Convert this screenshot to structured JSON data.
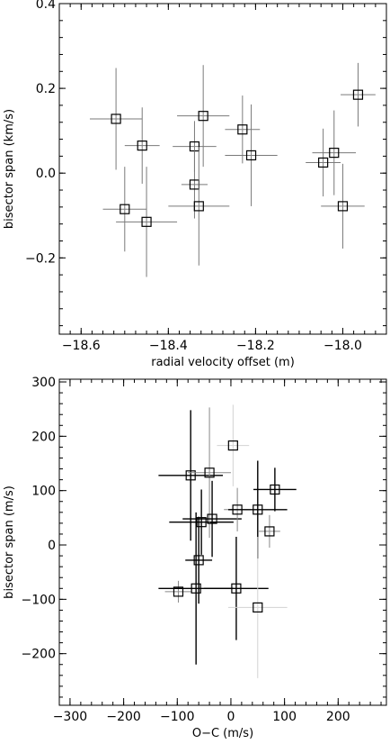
{
  "chart_data": [
    {
      "type": "scatter",
      "title": "",
      "xlabel": "radial velocity offset (m)",
      "ylabel": "bisector span (km/s)",
      "xlim": [
        -18.65,
        -17.9
      ],
      "ylim": [
        -0.38,
        0.4
      ],
      "grid": false,
      "xticks": [
        -18.6,
        -18.4,
        -18.2,
        -18.0
      ],
      "xtick_labels": [
        "−18.6",
        "−18.4",
        "−18.2",
        "−18.0"
      ],
      "yticks": [
        -0.2,
        0.0,
        0.2,
        0.4
      ],
      "ytick_labels": [
        "−0.2",
        "0.0",
        "0.2",
        "0.4"
      ],
      "points": [
        {
          "x": -18.52,
          "y": 0.128,
          "xerr": 0.06,
          "yerr": 0.12
        },
        {
          "x": -18.46,
          "y": 0.065,
          "xerr": 0.04,
          "yerr": 0.09
        },
        {
          "x": -18.5,
          "y": -0.085,
          "xerr": 0.05,
          "yerr": 0.1
        },
        {
          "x": -18.45,
          "y": -0.115,
          "xerr": 0.07,
          "yerr": 0.13
        },
        {
          "x": -18.34,
          "y": 0.063,
          "xerr": 0.05,
          "yerr": 0.06
        },
        {
          "x": -18.32,
          "y": 0.135,
          "xerr": 0.06,
          "yerr": 0.12
        },
        {
          "x": -18.34,
          "y": -0.027,
          "xerr": 0.03,
          "yerr": 0.08
        },
        {
          "x": -18.33,
          "y": -0.078,
          "xerr": 0.07,
          "yerr": 0.14
        },
        {
          "x": -18.23,
          "y": 0.103,
          "xerr": 0.04,
          "yerr": 0.08
        },
        {
          "x": -18.21,
          "y": 0.042,
          "xerr": 0.06,
          "yerr": 0.12
        },
        {
          "x": -18.045,
          "y": 0.025,
          "xerr": 0.04,
          "yerr": 0.08
        },
        {
          "x": -18.02,
          "y": 0.048,
          "xerr": 0.05,
          "yerr": 0.1
        },
        {
          "x": -18.0,
          "y": -0.078,
          "xerr": 0.05,
          "yerr": 0.1
        },
        {
          "x": -17.965,
          "y": 0.185,
          "xerr": 0.04,
          "yerr": 0.075
        }
      ]
    },
    {
      "type": "scatter",
      "title": "",
      "xlabel": "O−C (m/s)",
      "ylabel": "bisector span (m/s)",
      "xlim": [
        -320,
        290
      ],
      "ylim": [
        -295,
        305
      ],
      "grid": false,
      "xticks": [
        -300,
        -200,
        -100,
        0,
        100,
        200
      ],
      "xtick_labels": [
        "−300",
        "−200",
        "−100",
        "0",
        "100",
        "200"
      ],
      "yticks": [
        -200,
        -100,
        0,
        100,
        200,
        300
      ],
      "ytick_labels": [
        "−200",
        "−100",
        "0",
        "100",
        "200",
        "300"
      ],
      "points": [
        {
          "x": -75,
          "y": 128,
          "xerr": 60,
          "yerr": 120,
          "shade": "dark"
        },
        {
          "x": -55,
          "y": 42,
          "xerr": 60,
          "yerr": 60,
          "shade": "dark"
        },
        {
          "x": -40,
          "y": 133,
          "xerr": 40,
          "yerr": 120,
          "shade": "mid"
        },
        {
          "x": -35,
          "y": 48,
          "xerr": 55,
          "yerr": 70,
          "shade": "dark"
        },
        {
          "x": 4,
          "y": 183,
          "xerr": 30,
          "yerr": 75,
          "shade": "faint"
        },
        {
          "x": -60,
          "y": -28,
          "xerr": 25,
          "yerr": 80,
          "shade": "dark"
        },
        {
          "x": -98,
          "y": -86,
          "xerr": 25,
          "yerr": 20,
          "shade": "mid"
        },
        {
          "x": -65,
          "y": -80,
          "xerr": 70,
          "yerr": 140,
          "shade": "dark"
        },
        {
          "x": 12,
          "y": 65,
          "xerr": 25,
          "yerr": 40,
          "shade": "mid"
        },
        {
          "x": 50,
          "y": 65,
          "xerr": 55,
          "yerr": 90,
          "shade": "dark"
        },
        {
          "x": 72,
          "y": 25,
          "xerr": 20,
          "yerr": 30,
          "shade": "mid"
        },
        {
          "x": 82,
          "y": 102,
          "xerr": 40,
          "yerr": 40,
          "shade": "dark"
        },
        {
          "x": 10,
          "y": -80,
          "xerr": 60,
          "yerr": 95,
          "shade": "dark"
        },
        {
          "x": 50,
          "y": -115,
          "xerr": 55,
          "yerr": 130,
          "shade": "faint"
        }
      ]
    }
  ]
}
